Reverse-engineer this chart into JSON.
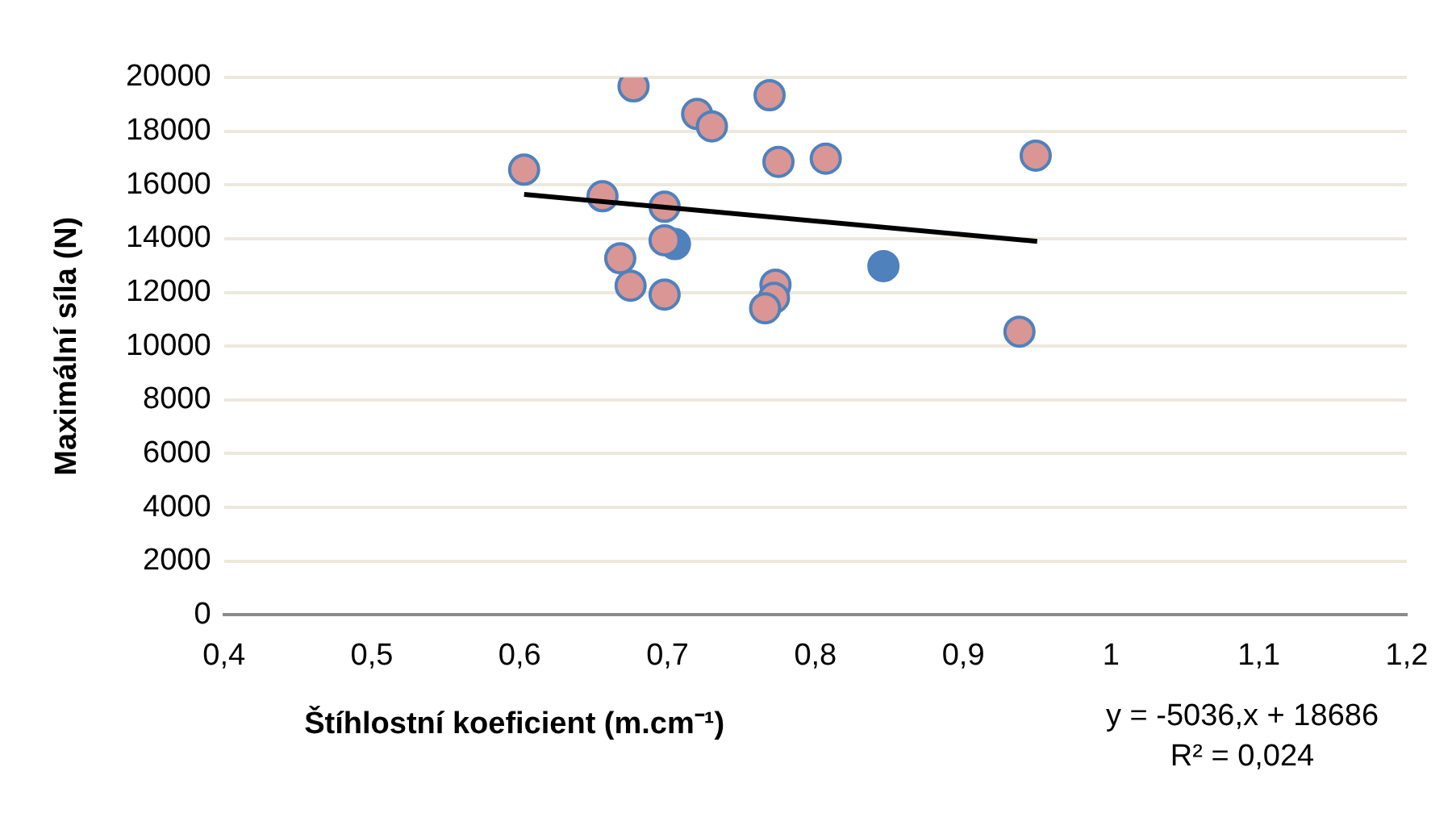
{
  "chart_data": {
    "type": "scatter",
    "xlabel": "Štíhlostní koeficient (m.cm⁻¹)",
    "ylabel": "Maximální síla (N)",
    "xlim": [
      0.4,
      1.2
    ],
    "xticks": [
      {
        "value": 0.4,
        "label": "0,4"
      },
      {
        "value": 0.5,
        "label": "0,5"
      },
      {
        "value": 0.6,
        "label": "0,6"
      },
      {
        "value": 0.7,
        "label": "0,7"
      },
      {
        "value": 0.8,
        "label": "0,8"
      },
      {
        "value": 0.9,
        "label": "0,9"
      },
      1,
      {
        "value": 1.1,
        "label": "1,1"
      },
      {
        "value": 1.2,
        "label": "1,2"
      }
    ],
    "ylim": [
      0,
      20000
    ],
    "yticks": [
      0,
      2000,
      4000,
      6000,
      8000,
      10000,
      12000,
      14000,
      16000,
      18000,
      20000
    ],
    "grid": "y",
    "legend": false,
    "marker": "circle",
    "series": [
      {
        "color": "#4f81bd",
        "x": [
          0.705,
          0.846
        ],
        "values": [
          13800,
          12980
        ]
      },
      {
        "color": "#d99694",
        "x": [
          0.677,
          0.72,
          0.73,
          0.769,
          0.603,
          0.775,
          0.807,
          0.949,
          0.656,
          0.698,
          0.698,
          0.668,
          0.773,
          0.675,
          0.772,
          0.698,
          0.766,
          0.938
        ],
        "values": [
          19670,
          18640,
          18180,
          19340,
          16570,
          16860,
          16980,
          17090,
          15580,
          15190,
          13940,
          13270,
          12290,
          12250,
          11800,
          11920,
          11410,
          10540
        ]
      },
      {
        "type": "line",
        "marker": "none",
        "color": "#000000",
        "x": [
          0.603,
          0.95
        ],
        "values": [
          15650,
          13900
        ]
      }
    ],
    "annotations": [
      "y = -5036,x + 18686",
      "R² = 0,024"
    ]
  }
}
